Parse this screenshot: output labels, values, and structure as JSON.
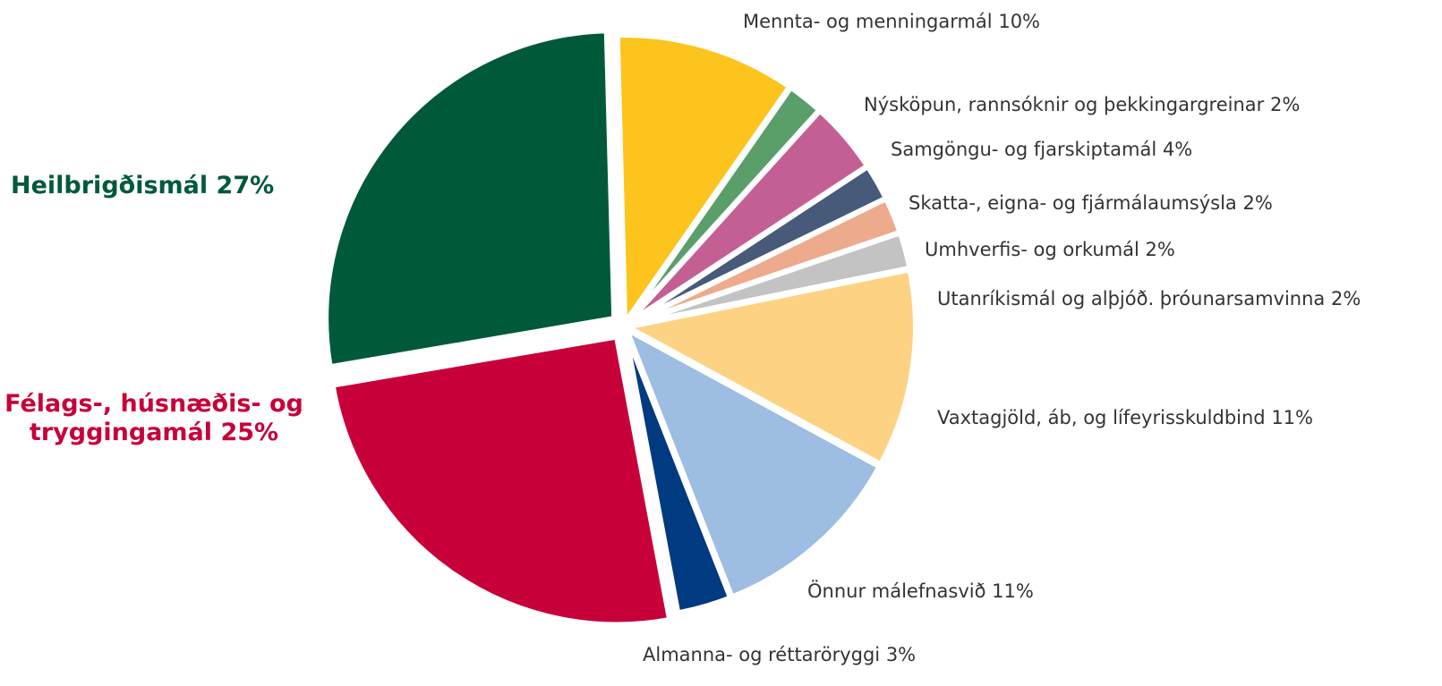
{
  "chart_data": {
    "type": "pie",
    "categories": [
      "Mennta- og menningarmál",
      "Nýsköpun, rannsóknir og þekkingargreinar",
      "Samgöngu- og fjarskiptamál",
      "Skatta-, eigna- og fjármálaumsýsla",
      "Umhverfis- og orkumál",
      "Utanríkismál og alþjóð. þróunarsamvinna",
      "Vaxtagjöld, áb, og lífeyrisskuldbind",
      "Önnur málefnasvið",
      "Almanna- og réttaröryggi",
      "Félags-, húsnæðis- og tryggingamál",
      "Heilbrigðismál"
    ],
    "values": [
      10,
      2,
      4,
      2,
      2,
      2,
      11,
      11,
      3,
      25,
      27
    ],
    "value_labels": [
      "10%",
      "2%",
      "4%",
      "2%",
      "2%",
      "2%",
      "11%",
      "11%",
      "3%",
      "25%",
      "27%"
    ],
    "colors": [
      "#fcc41c",
      "#5a9e6a",
      "#c45f93",
      "#485a7a",
      "#eeaa8c",
      "#c3c3c3",
      "#fdd283",
      "#9dbde2",
      "#003a80",
      "#c8003a",
      "#005a3a"
    ]
  }
}
